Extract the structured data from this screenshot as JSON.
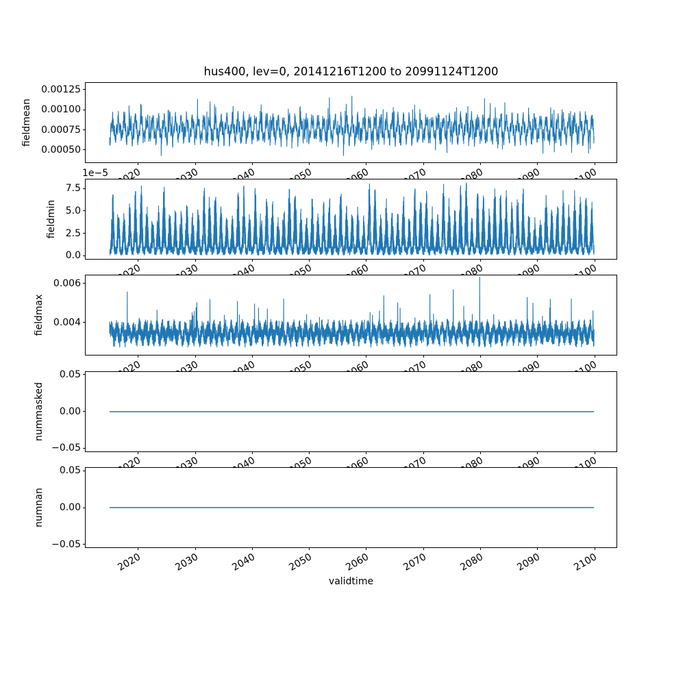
{
  "figure": {
    "title": "hus400, lev=0, 20141216T1200 to 20991124T1200",
    "background_color": "#ffffff",
    "frame_color": "#000000",
    "text_color": "#000000",
    "line_color": "#1f77b4",
    "grid": "off",
    "legend": "none"
  },
  "x_axis": {
    "label": "validtime",
    "tick_labels": [
      "2020",
      "2030",
      "2040",
      "2050",
      "2060",
      "2070",
      "2080",
      "2090",
      "2100"
    ],
    "tick_values": [
      2020,
      2030,
      2040,
      2050,
      2060,
      2070,
      2080,
      2090,
      2100
    ],
    "xlim": [
      2010.76,
      2103.84
    ],
    "data_start": 2014.96,
    "data_end": 2099.9
  },
  "chart_data": [
    {
      "type": "line",
      "ylabel": "fieldmean",
      "ylim": [
        0.000346,
        0.001335
      ],
      "yticks": [
        {
          "value": 0.0005,
          "label": "0.00050"
        },
        {
          "value": 0.00075,
          "label": "0.00075"
        },
        {
          "value": 0.001,
          "label": "0.00100"
        },
        {
          "value": 0.00125,
          "label": "0.00125"
        }
      ],
      "series": {
        "kind": "mean",
        "seed": 11,
        "step": 0.02,
        "base": 0.00076,
        "annual_amp": 0.00011,
        "fast_amp": 5.5e-05,
        "fast_freq": 3.1,
        "noise": 6.5e-05,
        "spike_up": 0.00026,
        "spike_up_p": 0.035,
        "spike_dn": 0.00019,
        "spike_dn_p": 0.022,
        "clamp": [
          0.00043,
          0.00131
        ]
      },
      "summary": "dense annual oscillation, mean ~0.00075, band 0.0006-0.0009, spikes 0.00043-0.0013"
    },
    {
      "type": "line",
      "ylabel": "fieldmin",
      "offset_label": "1e−5",
      "scale": 1e-05,
      "ylim": [
        -0.33,
        8.55
      ],
      "yticks": [
        {
          "value": 0.0,
          "label": "0.0"
        },
        {
          "value": 2.5,
          "label": "2.5"
        },
        {
          "value": 5.0,
          "label": "5.0"
        },
        {
          "value": 7.5,
          "label": "7.5"
        }
      ],
      "series": {
        "kind": "min",
        "seed": 22,
        "step": 0.012,
        "base": 1.0,
        "floor": 0.08,
        "peak_min": 3.4,
        "peak_max": 7.6,
        "peak_exp": 2.2
      },
      "summary": "annual spike train (units 1e-5): peaks ~4-8, baseline near 0"
    },
    {
      "type": "line",
      "ylabel": "fieldmax",
      "ylim": [
        0.00235,
        0.00642
      ],
      "yticks": [
        {
          "value": 0.004,
          "label": "0.004"
        },
        {
          "value": 0.006,
          "label": "0.006"
        }
      ],
      "series": {
        "kind": "max",
        "seed": 33,
        "step": 0.02,
        "base": 0.00345,
        "annual_amp": 0.00026,
        "noise": 0.00046,
        "spike": 0.0017,
        "spike_p": 0.02,
        "clamp": [
          0.00262,
          0.00636
        ],
        "big_spike_t": 2079.85,
        "big_spike_v": 0.00633
      },
      "summary": "noisy band ~0.003-0.0045 with spikes to ~0.0064 near 2080"
    },
    {
      "type": "line",
      "ylabel": "nummasked",
      "ylim": [
        -0.054,
        0.054
      ],
      "yticks": [
        {
          "value": -0.05,
          "label": "−0.05"
        },
        {
          "value": 0.0,
          "label": "0.00"
        },
        {
          "value": 0.05,
          "label": "0.05"
        }
      ],
      "series": {
        "kind": "flat",
        "value": 0
      },
      "summary": "constant 0 over full period"
    },
    {
      "type": "line",
      "ylabel": "numnan",
      "ylim": [
        -0.054,
        0.054
      ],
      "yticks": [
        {
          "value": -0.05,
          "label": "−0.05"
        },
        {
          "value": 0.0,
          "label": "0.00"
        },
        {
          "value": 0.05,
          "label": "0.05"
        }
      ],
      "series": {
        "kind": "flat",
        "value": 0
      },
      "summary": "constant 0 over full period"
    }
  ]
}
